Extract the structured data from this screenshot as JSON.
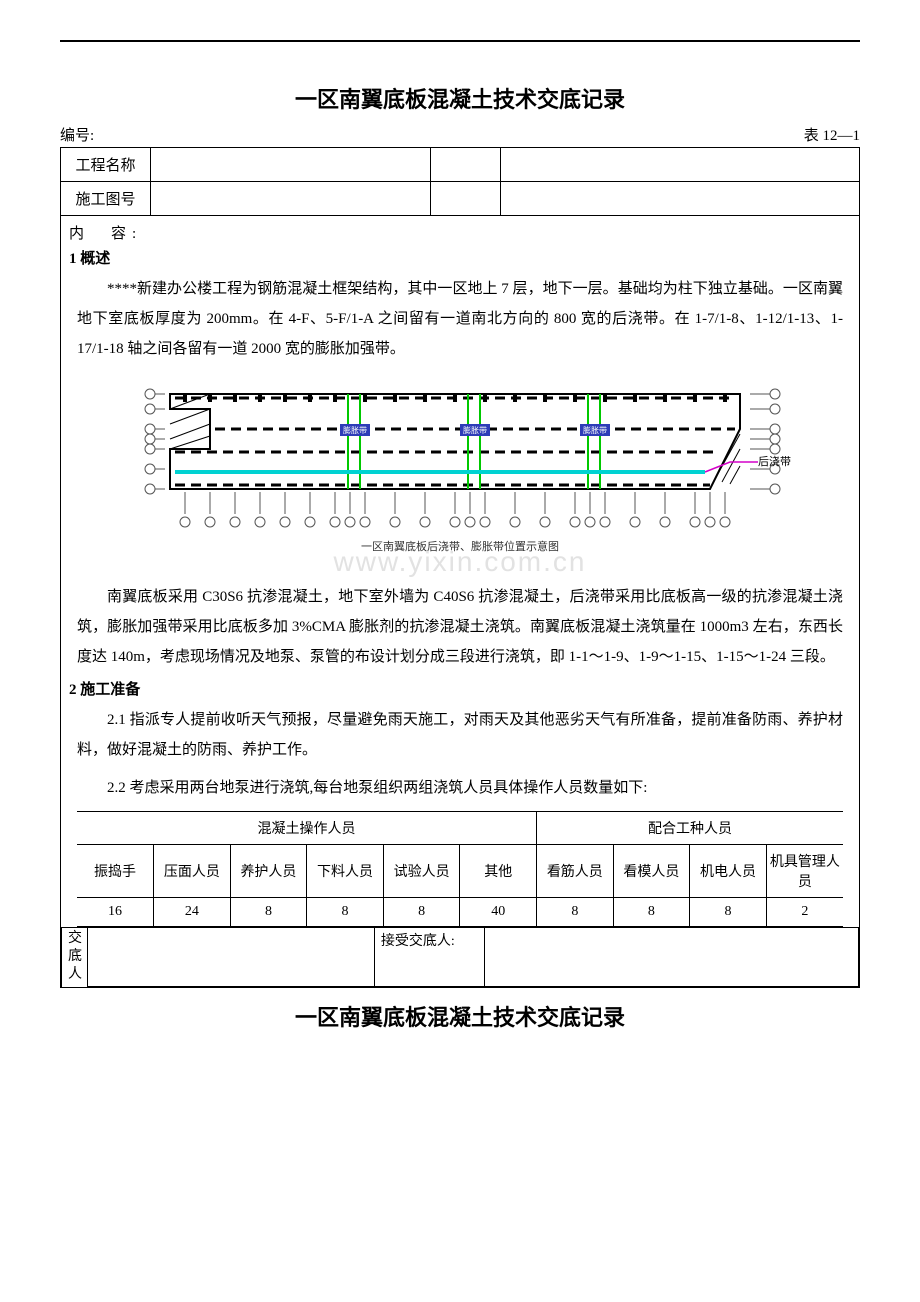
{
  "page": {
    "title": "一区南翼底板混凝土技术交底记录",
    "doc_no_label": "编号:",
    "table_ref": "表 12—1"
  },
  "header": {
    "row1_label": "工程名称",
    "row1_val1": "",
    "row1_val2": "",
    "row2_label": "施工图号",
    "row2_val1": "",
    "row2_val2": ""
  },
  "content_label": "内　容:",
  "sections": {
    "s1_heading": "1 概述",
    "s1_p1": "****新建办公楼工程为钢筋混凝土框架结构，其中一区地上 7 层，地下一层。基础均为柱下独立基础。一区南翼地下室底板厚度为 200mm。在 4-F、5-F/1-A 之间留有一道南北方向的 800 宽的后浇带。在 1-7/1-8、1-12/1-13、1-17/1-18 轴之间各留有一道 2000 宽的膨胀加强带。",
    "s1_p2": "南翼底板采用 C30S6 抗渗混凝土，地下室外墙为 C40S6 抗渗混凝土，后浇带采用比底板高一级的抗渗混凝土浇筑，膨胀加强带采用比底板多加 3%CMA 膨胀剂的抗渗混凝土浇筑。南翼底板混凝土浇筑量在 1000m3 左右，东西长度达 140m，考虑现场情况及地泵、泵管的布设计划分成三段进行浇筑，即 1-1～1-9、1-9～1-15、1-15～1-24 三段。",
    "s2_heading": "2 施工准备",
    "s2_p1": "2.1 指派专人提前收听天气预报，尽量避免雨天施工，对雨天及其他恶劣天气有所准备，提前准备防雨、养护材料，做好混凝土的防雨、养护工作。",
    "s2_p2": "2.2 考虑采用两台地泵进行浇筑,每台地泵组织两组浇筑人员具体操作人员数量如下:"
  },
  "diagram": {
    "caption": "一区南翼底板后浇带、膨胀带位置示意图",
    "expansion_label": "膨胀带",
    "post_pour_label": "后浇带",
    "colors": {
      "outline": "#000000",
      "expansion_band": "#00c800",
      "post_pour_band": "#00d2d2",
      "post_pour_leader": "#d400c8",
      "axis_gray": "#555555"
    },
    "row_axes": [
      "G",
      "F",
      "E",
      "D",
      "C",
      "B",
      "A"
    ],
    "col_axes": [
      "1",
      "2",
      "3",
      "4",
      "5",
      "6",
      "7",
      "8",
      "9",
      "10",
      "11",
      "12",
      "13",
      "14",
      "15",
      "16",
      "17",
      "18",
      "19",
      "20",
      "21",
      "22",
      "23",
      "24"
    ]
  },
  "watermark": "www.yixin.com.cn",
  "staff_table": {
    "group1": "混凝土操作人员",
    "group2": "配合工种人员",
    "cols": [
      "振捣手",
      "压面人员",
      "养护人员",
      "下料人员",
      "试验人员",
      "其他",
      "看筋人员",
      "看模人员",
      "机电人员",
      "机具管理人员"
    ],
    "vals": [
      "16",
      "24",
      "8",
      "8",
      "8",
      "40",
      "8",
      "8",
      "8",
      "2"
    ]
  },
  "sign": {
    "left_label": "交底人",
    "right_label": "接受交底人:"
  },
  "footer_title": "一区南翼底板混凝土技术交底记录"
}
